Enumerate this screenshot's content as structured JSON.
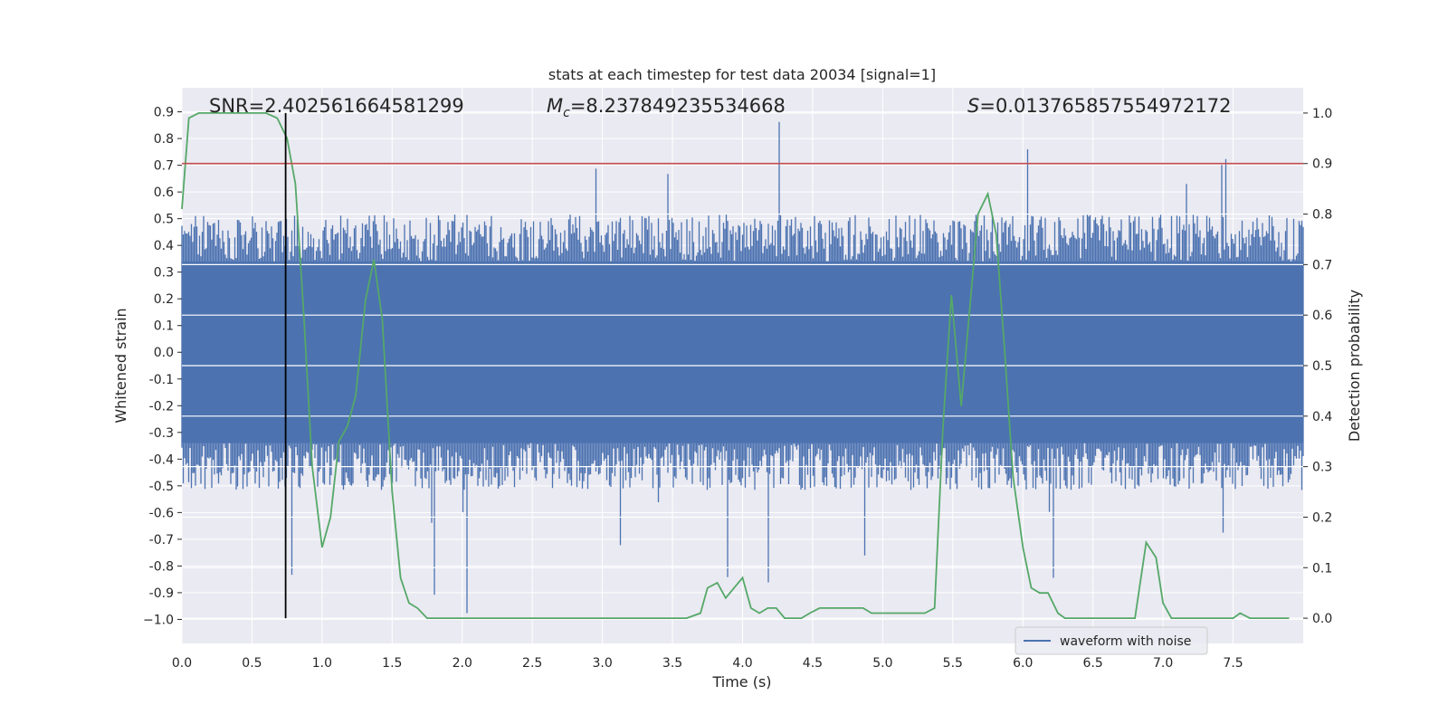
{
  "chart_data": {
    "type": "line",
    "title": "stats at each timestep for test data 20034 [signal=1]",
    "xlabel": "Time (s)",
    "ylabel": "Whitened strain",
    "y2label": "Detection probability",
    "xlim": [
      0.0,
      8.0
    ],
    "ylim": [
      -1.09,
      0.99
    ],
    "y2lim": [
      -0.05,
      1.05
    ],
    "x_ticks": [
      "0.0",
      "0.5",
      "1.0",
      "1.5",
      "2.0",
      "2.5",
      "3.0",
      "3.5",
      "4.0",
      "4.5",
      "5.0",
      "5.5",
      "6.0",
      "6.5",
      "7.0",
      "7.5"
    ],
    "y_ticks": [
      "0.9",
      "0.8",
      "0.7",
      "0.6",
      "0.5",
      "0.4",
      "0.3",
      "0.2",
      "0.1",
      "0.0",
      "-0.1",
      "-0.2",
      "-0.3",
      "-0.4",
      "-0.5",
      "-0.6",
      "-0.7",
      "-0.8",
      "-0.9",
      "−1.0"
    ],
    "y2_ticks": [
      "1.0",
      "0.9",
      "0.8",
      "0.7",
      "0.6",
      "0.5",
      "0.4",
      "0.3",
      "0.2",
      "0.1",
      "0.0"
    ],
    "annotations": {
      "snr": "SNR=2.402561664581299",
      "mc_symbol": "M",
      "mc_sub": "c",
      "mc_value": "=8.237849235534668",
      "s_symbol": "S",
      "s_value": "=0.013765857554972172"
    },
    "threshold": {
      "value": 0.9,
      "axis": "y2",
      "color": "#c44e52"
    },
    "marker_time": 0.74,
    "series": [
      {
        "name": "waveform with noise",
        "axis": "y",
        "color": "#4c72b0",
        "envelope": {
          "core": 0.34,
          "mean_peak": 0.42,
          "max_peak": 0.9,
          "min_trough": -1.0
        }
      },
      {
        "name": "detection probability",
        "axis": "y2",
        "color": "#55a868",
        "x": [
          0.0,
          0.05,
          0.12,
          0.2,
          0.3,
          0.4,
          0.5,
          0.6,
          0.68,
          0.75,
          0.81,
          0.87,
          0.93,
          1.0,
          1.06,
          1.12,
          1.18,
          1.24,
          1.31,
          1.37,
          1.43,
          1.5,
          1.56,
          1.62,
          1.68,
          1.75,
          1.8,
          1.9,
          2.0,
          2.2,
          2.4,
          2.6,
          2.8,
          3.0,
          3.2,
          3.4,
          3.6,
          3.7,
          3.75,
          3.82,
          3.88,
          3.94,
          4.0,
          4.06,
          4.12,
          4.18,
          4.24,
          4.3,
          4.36,
          4.42,
          4.48,
          4.55,
          4.6,
          4.67,
          4.73,
          4.8,
          4.86,
          4.92,
          5.0,
          5.1,
          5.2,
          5.3,
          5.37,
          5.43,
          5.49,
          5.56,
          5.62,
          5.68,
          5.75,
          5.81,
          5.87,
          5.93,
          6.0,
          6.06,
          6.12,
          6.18,
          6.25,
          6.3,
          6.4,
          6.5,
          6.6,
          6.7,
          6.8,
          6.88,
          6.95,
          7.0,
          7.06,
          7.1,
          7.2,
          7.3,
          7.4,
          7.5,
          7.55,
          7.62,
          7.7,
          7.8,
          7.9
        ],
        "values": [
          0.81,
          0.99,
          1.0,
          1.0,
          1.0,
          1.0,
          1.0,
          1.0,
          0.99,
          0.95,
          0.86,
          0.6,
          0.3,
          0.14,
          0.2,
          0.35,
          0.38,
          0.44,
          0.63,
          0.71,
          0.59,
          0.25,
          0.08,
          0.03,
          0.02,
          0.0,
          0.0,
          0.0,
          0.0,
          0.0,
          0.0,
          0.0,
          0.0,
          0.0,
          0.0,
          0.0,
          0.0,
          0.01,
          0.06,
          0.07,
          0.04,
          0.06,
          0.08,
          0.02,
          0.01,
          0.02,
          0.02,
          0.0,
          0.0,
          0.0,
          0.01,
          0.02,
          0.02,
          0.02,
          0.02,
          0.02,
          0.02,
          0.01,
          0.01,
          0.01,
          0.01,
          0.01,
          0.02,
          0.38,
          0.64,
          0.42,
          0.61,
          0.8,
          0.84,
          0.76,
          0.53,
          0.28,
          0.14,
          0.06,
          0.05,
          0.05,
          0.01,
          0.0,
          0.0,
          0.0,
          0.0,
          0.0,
          0.0,
          0.15,
          0.12,
          0.03,
          0.0,
          0.0,
          0.0,
          0.0,
          0.0,
          0.0,
          0.01,
          0.0,
          0.0,
          0.0,
          0.0
        ]
      }
    ],
    "legend": {
      "label": "waveform with noise",
      "position": "lower-right"
    }
  }
}
